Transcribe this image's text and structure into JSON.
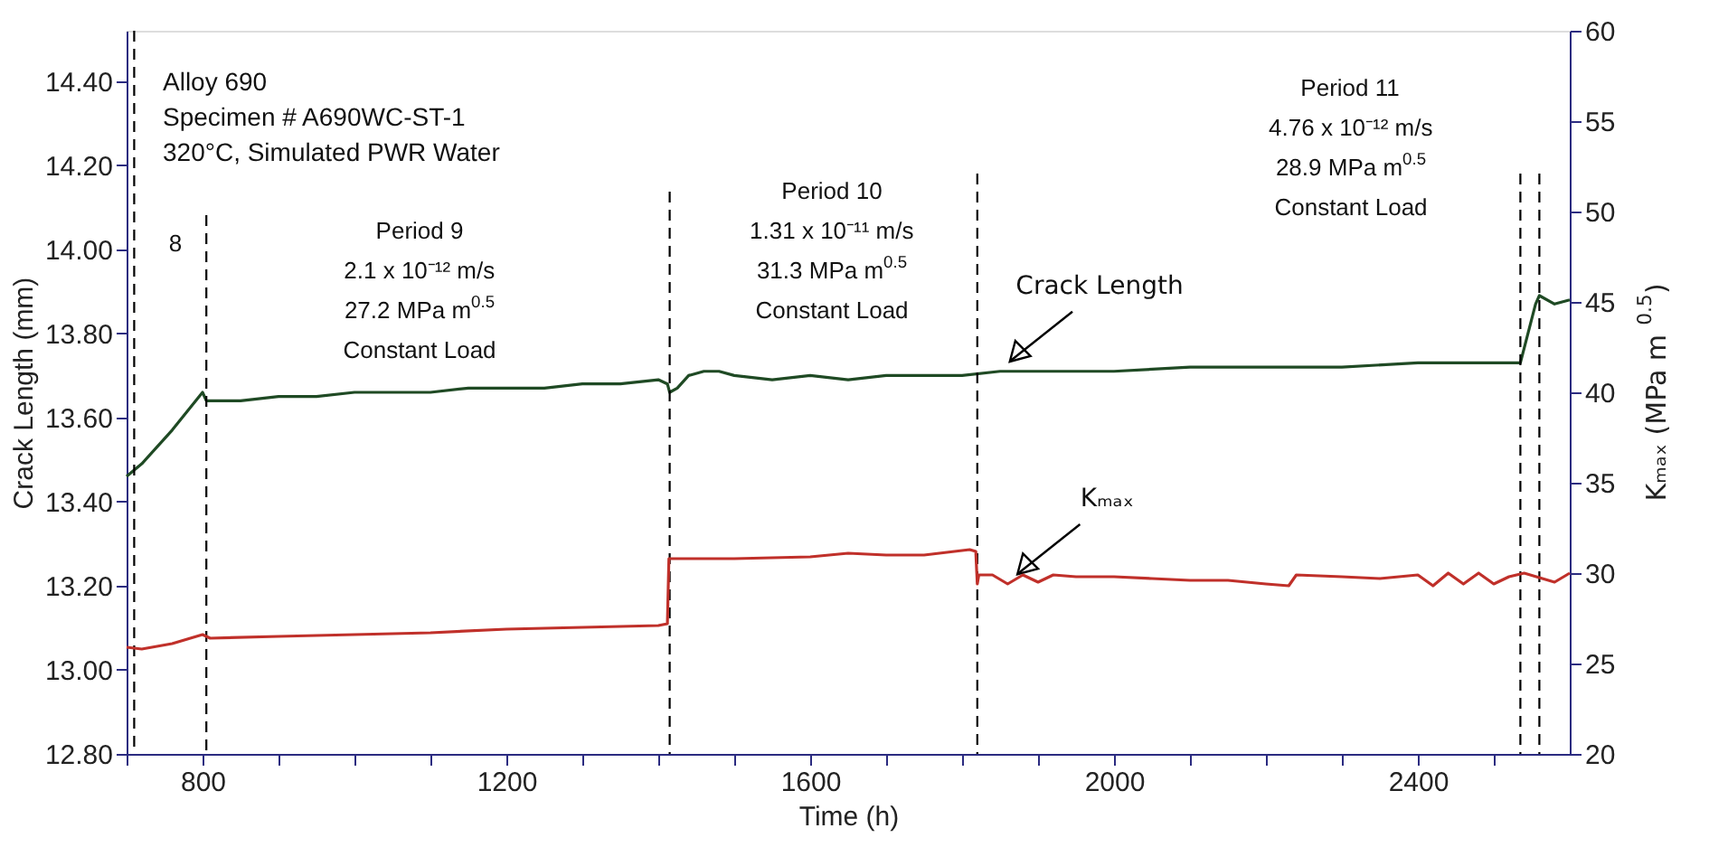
{
  "chart_data": {
    "type": "line",
    "xlabel": "Time (h)",
    "ylabel": "Crack Length (mm)",
    "y2label": "Kₘₐₓ (MPa m$^{0.5}$)",
    "xlim": [
      700,
      2600
    ],
    "xticks": [
      {
        "value": 700,
        "label": null
      },
      800,
      {
        "value": 900,
        "label": null
      },
      {
        "value": 1000,
        "label": null
      },
      {
        "value": 1100,
        "label": null
      },
      1200,
      {
        "value": 1300,
        "label": null
      },
      {
        "value": 1400,
        "label": null
      },
      {
        "value": 1500,
        "label": null
      },
      1600,
      {
        "value": 1700,
        "label": null
      },
      {
        "value": 1800,
        "label": null
      },
      {
        "value": 1900,
        "label": null
      },
      2000,
      {
        "value": 2100,
        "label": null
      },
      {
        "value": 2200,
        "label": null
      },
      {
        "value": 2300,
        "label": null
      },
      2400,
      {
        "value": 2500,
        "label": null
      }
    ],
    "ylim": [
      12.8,
      14.52
    ],
    "yticks": [
      {
        "value": 12.8,
        "label": "12.80"
      },
      {
        "value": 13,
        "label": "13.00"
      },
      {
        "value": 13.2,
        "label": "13.20"
      },
      {
        "value": 13.4,
        "label": "13.40"
      },
      {
        "value": 13.6,
        "label": "13.60"
      },
      {
        "value": 13.8,
        "label": "13.80"
      },
      {
        "value": 14,
        "label": "14.00"
      },
      {
        "value": 14.2,
        "label": "14.20"
      },
      {
        "value": 14.4,
        "label": "14.40"
      }
    ],
    "y2lim": [
      20,
      60
    ],
    "y2ticks": [
      20,
      25,
      30,
      35,
      40,
      45,
      50,
      55,
      60
    ],
    "series": [
      {
        "name": "Crack Length",
        "color": "#1f4a24",
        "x": [
          700,
          720,
          760,
          800,
          805,
          850,
          900,
          950,
          1000,
          1050,
          1100,
          1150,
          1200,
          1250,
          1300,
          1350,
          1400,
          1412,
          1415,
          1425,
          1440,
          1460,
          1480,
          1500,
          1550,
          1600,
          1650,
          1700,
          1750,
          1800,
          1850,
          1900,
          2000,
          2100,
          2200,
          2300,
          2400,
          2500,
          2535,
          2555,
          2560,
          2580,
          2600
        ],
        "values": [
          13.46,
          13.49,
          13.57,
          13.66,
          13.64,
          13.64,
          13.65,
          13.65,
          13.66,
          13.66,
          13.66,
          13.67,
          13.67,
          13.67,
          13.68,
          13.68,
          13.69,
          13.68,
          13.66,
          13.67,
          13.7,
          13.71,
          13.71,
          13.7,
          13.69,
          13.7,
          13.69,
          13.7,
          13.7,
          13.7,
          13.71,
          13.71,
          13.71,
          13.72,
          13.72,
          13.72,
          13.73,
          13.73,
          13.73,
          13.87,
          13.89,
          13.87,
          13.88
        ]
      },
      {
        "name": "Kₘₐₓ",
        "color": "#c0302a",
        "axis": "y2",
        "x": [
          700,
          720,
          760,
          800,
          810,
          900,
          1000,
          1100,
          1200,
          1300,
          1400,
          1412,
          1414,
          1500,
          1600,
          1650,
          1700,
          1750,
          1810,
          1818,
          1820,
          1822,
          1840,
          1860,
          1880,
          1900,
          1920,
          1950,
          2000,
          2050,
          2100,
          2150,
          2200,
          2230,
          2240,
          2300,
          2350,
          2400,
          2420,
          2440,
          2460,
          2480,
          2500,
          2520,
          2540,
          2580,
          2600
        ],
        "values": [
          25.9,
          25.8,
          26.1,
          26.6,
          26.4,
          26.5,
          26.6,
          26.7,
          26.9,
          27.0,
          27.1,
          27.2,
          30.8,
          30.8,
          30.9,
          31.1,
          31.0,
          31.0,
          31.3,
          31.2,
          29.4,
          29.9,
          29.9,
          29.4,
          29.9,
          29.5,
          29.9,
          29.8,
          29.8,
          29.7,
          29.6,
          29.6,
          29.4,
          29.3,
          29.9,
          29.8,
          29.7,
          29.9,
          29.3,
          30.0,
          29.4,
          30.0,
          29.4,
          29.8,
          30.0,
          29.5,
          30.0
        ]
      }
    ],
    "ref_lines": [
      {
        "axis": "x",
        "value": 710,
        "color": "#000000",
        "line_style": "dashed"
      },
      {
        "axis": "x",
        "value": 805,
        "color": "#000000",
        "line_style": "dashed"
      },
      {
        "axis": "x",
        "value": 1415,
        "color": "#000000",
        "line_style": "dashed"
      },
      {
        "axis": "x",
        "value": 1820,
        "color": "#000000",
        "line_style": "dashed"
      },
      {
        "axis": "x",
        "value": 2535,
        "color": "#000000",
        "line_style": "dashed"
      },
      {
        "axis": "x",
        "value": 2560,
        "color": "#000000",
        "line_style": "dashed"
      }
    ],
    "annotations": [
      "Alloy 690\nSpecimen # A690WC-ST-1\n320°C, Simulated PWR Water",
      "8",
      "Period 9\n2.1 x 10⁻¹² m/s\n27.2 MPa m$^{0.5}$\nConstant Load",
      "Period 10\n1.31 x 10⁻¹¹ m/s\n31.3 MPa m$^{0.5}$\nConstant Load",
      "Period 11\n4.76 x 10⁻¹² m/s\n28.9 MPa m$^{0.5}$\nConstant Load"
    ],
    "grid": false,
    "marker": "none",
    "line_style": "solid"
  }
}
